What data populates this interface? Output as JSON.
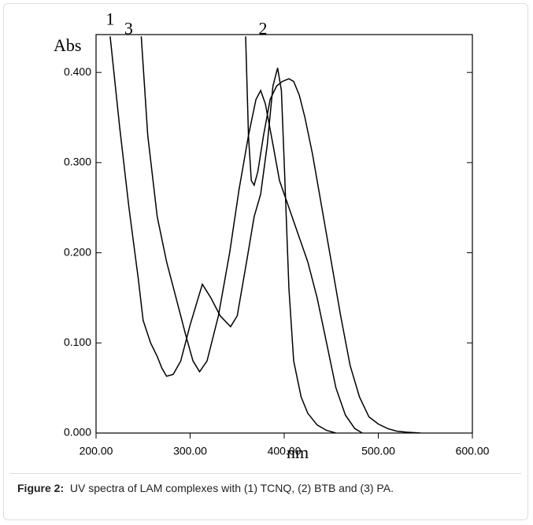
{
  "chart_data": {
    "type": "line",
    "y_label": "Abs",
    "x_label": "nm",
    "caption_label": "Figure 2:",
    "caption_text": "UV spectra of LAM complexes with (1) TCNQ, (2) BTB and (3) PA.",
    "xlim": [
      200,
      600
    ],
    "ylim": [
      0,
      0.442
    ],
    "xticks": [
      {
        "value": 200,
        "label": "200.00"
      },
      {
        "value": 300,
        "label": "300.00"
      },
      {
        "value": 400,
        "label": "400.00"
      },
      {
        "value": 500,
        "label": "500.00"
      },
      {
        "value": 600,
        "label": "600.00"
      }
    ],
    "yticks": [
      {
        "value": 0,
        "label": "0.000"
      },
      {
        "value": 0.1,
        "label": "0.100"
      },
      {
        "value": 0.2,
        "label": "0.200"
      },
      {
        "value": 0.3,
        "label": "0.300"
      },
      {
        "value": 0.4,
        "label": "0.400"
      }
    ],
    "series": [
      {
        "name": "1",
        "color": "#000000",
        "x": [
          215,
          225,
          235,
          245,
          250,
          258,
          265,
          270,
          275,
          282,
          290,
          300,
          313,
          322,
          332,
          343,
          350,
          360,
          368,
          375,
          382,
          388,
          393,
          397,
          400,
          405,
          410,
          418,
          425,
          435,
          445,
          455
        ],
        "values": [
          0.44,
          0.34,
          0.25,
          0.17,
          0.125,
          0.1,
          0.085,
          0.072,
          0.063,
          0.065,
          0.08,
          0.12,
          0.165,
          0.15,
          0.13,
          0.118,
          0.13,
          0.19,
          0.24,
          0.265,
          0.32,
          0.385,
          0.405,
          0.38,
          0.3,
          0.16,
          0.08,
          0.04,
          0.022,
          0.009,
          0.003,
          0
        ]
      },
      {
        "name": "2",
        "color": "#000000",
        "x": [
          359,
          362,
          365,
          368,
          372,
          378,
          385,
          392,
          398,
          405,
          410,
          416,
          422,
          430,
          440,
          450,
          460,
          470,
          480,
          490,
          500,
          510,
          520,
          530,
          545
        ],
        "values": [
          0.44,
          0.33,
          0.28,
          0.275,
          0.29,
          0.33,
          0.37,
          0.385,
          0.39,
          0.393,
          0.39,
          0.375,
          0.35,
          0.31,
          0.25,
          0.19,
          0.13,
          0.075,
          0.04,
          0.018,
          0.01,
          0.005,
          0.002,
          0.001,
          0
        ]
      },
      {
        "name": "3",
        "color": "#000000",
        "x": [
          248,
          255,
          265,
          275,
          285,
          295,
          303,
          310,
          318,
          330,
          342,
          352,
          362,
          370,
          375,
          380,
          388,
          395,
          405,
          415,
          425,
          435,
          445,
          455,
          465,
          475,
          483
        ],
        "values": [
          0.44,
          0.33,
          0.24,
          0.19,
          0.15,
          0.11,
          0.08,
          0.068,
          0.08,
          0.13,
          0.2,
          0.27,
          0.33,
          0.37,
          0.38,
          0.365,
          0.32,
          0.28,
          0.25,
          0.22,
          0.19,
          0.15,
          0.1,
          0.05,
          0.02,
          0.005,
          0
        ]
      }
    ]
  }
}
